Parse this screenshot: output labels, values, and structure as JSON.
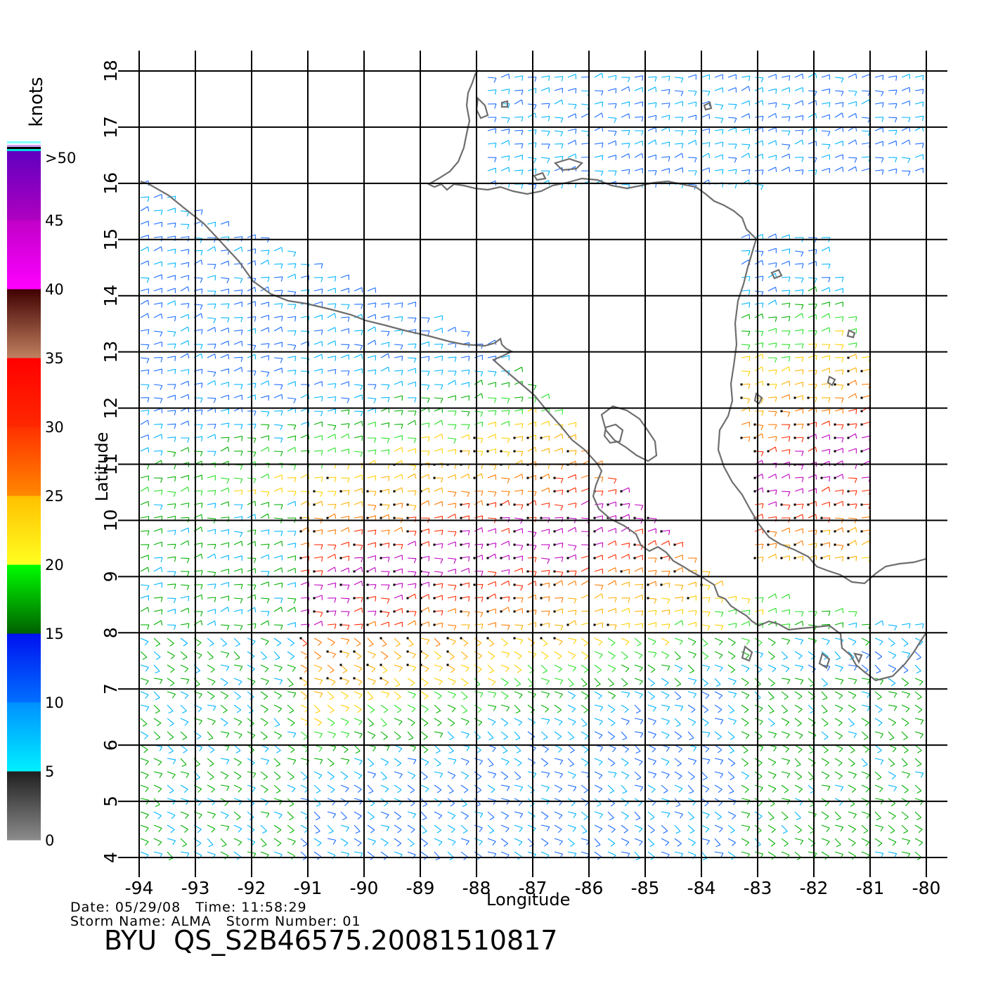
{
  "map": {
    "x_axis_label": "Longitude",
    "y_axis_label": "Latitude",
    "longitude_ticks": [
      "-94",
      "-93",
      "-92",
      "-91",
      "-90",
      "-89",
      "-88",
      "-87",
      "-86",
      "-85",
      "-84",
      "-83",
      "-82",
      "-81",
      "-80"
    ],
    "latitude_ticks": [
      "4",
      "5",
      "6",
      "7",
      "8",
      "9",
      "10",
      "11",
      "12",
      "13",
      "14",
      "15",
      "16",
      "17",
      "18"
    ],
    "lon_range": [
      -94,
      -80
    ],
    "lat_range": [
      4,
      18
    ],
    "gridlines": true,
    "coastline_color": "#6e6e6e",
    "content": "QuikSCAT wind barbs over eastern Pacific near Central America"
  },
  "colorbar": {
    "unit": "knots",
    "tick_labels": [
      ">50",
      "45",
      "40",
      "35",
      "30",
      "25",
      "20",
      "15",
      "10",
      "5",
      "0"
    ],
    "bands": [
      {
        "range": [
          0,
          5
        ],
        "from": "#8c8c8c",
        "to": "#1e1e1e"
      },
      {
        "range": [
          5,
          10
        ],
        "from": "#00f0ff",
        "to": "#0090ff"
      },
      {
        "range": [
          10,
          15
        ],
        "from": "#0070ff",
        "to": "#0010f0"
      },
      {
        "range": [
          15,
          20
        ],
        "from": "#006000",
        "to": "#00ff00"
      },
      {
        "range": [
          20,
          25
        ],
        "from": "#ffff20",
        "to": "#ffc000"
      },
      {
        "range": [
          25,
          30
        ],
        "from": "#ff8800",
        "to": "#ff3000"
      },
      {
        "range": [
          30,
          35
        ],
        "from": "#ff2800",
        "to": "#ff0000"
      },
      {
        "range": [
          35,
          40
        ],
        "from": "#c08060",
        "to": "#400000"
      },
      {
        "range": [
          40,
          45
        ],
        "from": "#ff00ff",
        "to": "#c000c8"
      },
      {
        "range": [
          45,
          50
        ],
        "from": "#b000c0",
        "to": "#6000c0"
      }
    ]
  },
  "footer": {
    "date_label": "Date:",
    "date": "05/29/08",
    "time_label": "Time:",
    "time": "11:58:29",
    "storm_name_label": "Storm Name:",
    "storm_name": "ALMA",
    "storm_number_label": "Storm Number:",
    "storm_number": "01",
    "product_id": "BYU  QS_S2B46575.20081510817"
  }
}
